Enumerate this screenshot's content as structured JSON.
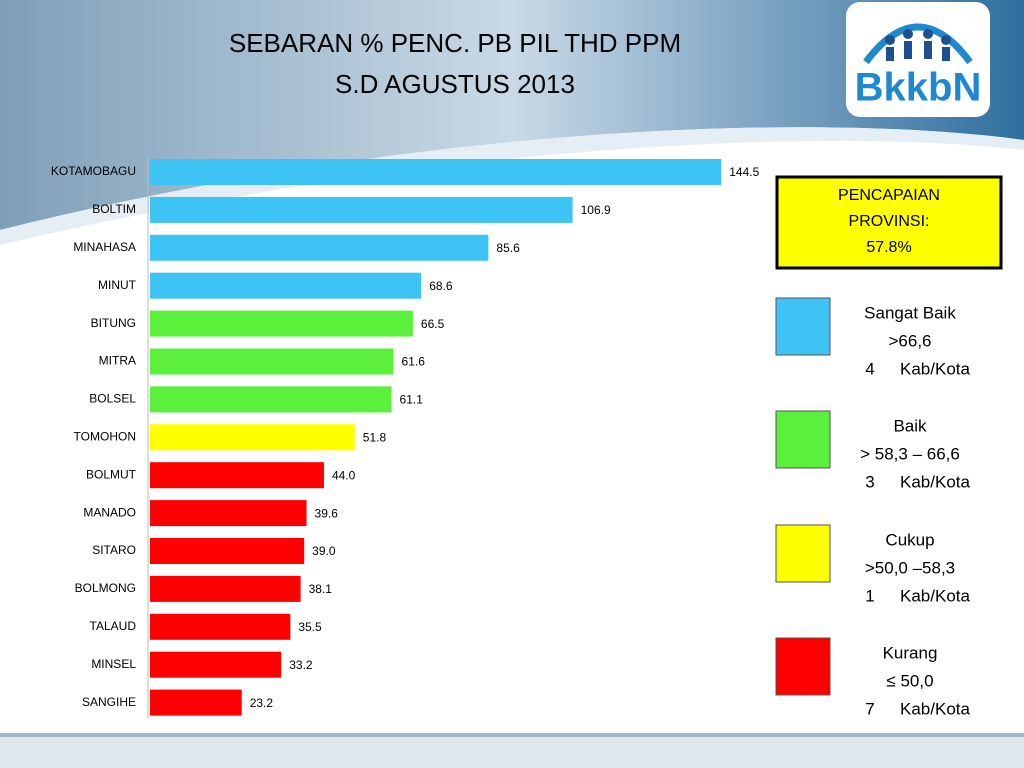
{
  "logo": "BkkbN",
  "chart_data": {
    "type": "bar",
    "orientation": "horizontal",
    "title": "SEBARAN % PENC. PB PIL THD PPM",
    "subtitle": "S.D AGUSTUS 2013",
    "categories": [
      "KOTAMOBAGU",
      "BOLTIM",
      "MINAHASA",
      "MINUT",
      "BITUNG",
      "MITRA",
      "BOLSEL",
      "TOMOHON",
      "BOLMUT",
      "MANADO",
      "SITARO",
      "BOLMONG",
      "TALAUD",
      "MINSEL",
      "SANGIHE"
    ],
    "values": [
      144.5,
      106.9,
      85.6,
      68.6,
      66.5,
      61.6,
      61.1,
      51.8,
      44.0,
      39.6,
      39.0,
      38.1,
      35.5,
      33.2,
      23.2
    ],
    "value_labels": [
      "144.5",
      "106.9",
      "85.6",
      "68.6",
      "66.5",
      "61.6",
      "61.1",
      "51.8",
      "44.0",
      "39.6",
      "39.0",
      "38.1",
      "35.5",
      "33.2",
      "23.2"
    ],
    "colors": [
      "#3ec4f4",
      "#3ec4f4",
      "#3ec4f4",
      "#3ec4f4",
      "#5af03c",
      "#5af03c",
      "#5af03c",
      "#ffff00",
      "#ff0000",
      "#ff0000",
      "#ff0000",
      "#ff0000",
      "#ff0000",
      "#ff0000",
      "#ff0000"
    ],
    "xlim": [
      0,
      150
    ],
    "annotation": [
      "PENCAPAIAN",
      "PROVINSI:",
      "57.8%"
    ],
    "legend": [
      {
        "color": "#3ec4f4",
        "label": "Sangat Baik",
        "range": ">66,6",
        "count": 4,
        "unit": "Kab/Kota"
      },
      {
        "color": "#5af03c",
        "label": "Baik",
        "range": "> 58,3 – 66,6",
        "count": 3,
        "unit": "Kab/Kota"
      },
      {
        "color": "#ffff00",
        "label": "Cukup",
        "range": ">50,0 –58,3",
        "count": 1,
        "unit": "Kab/Kota"
      },
      {
        "color": "#ff0000",
        "label": "Kurang",
        "range": "≤ 50,0",
        "count": 7,
        "unit": "Kab/Kota"
      }
    ]
  }
}
